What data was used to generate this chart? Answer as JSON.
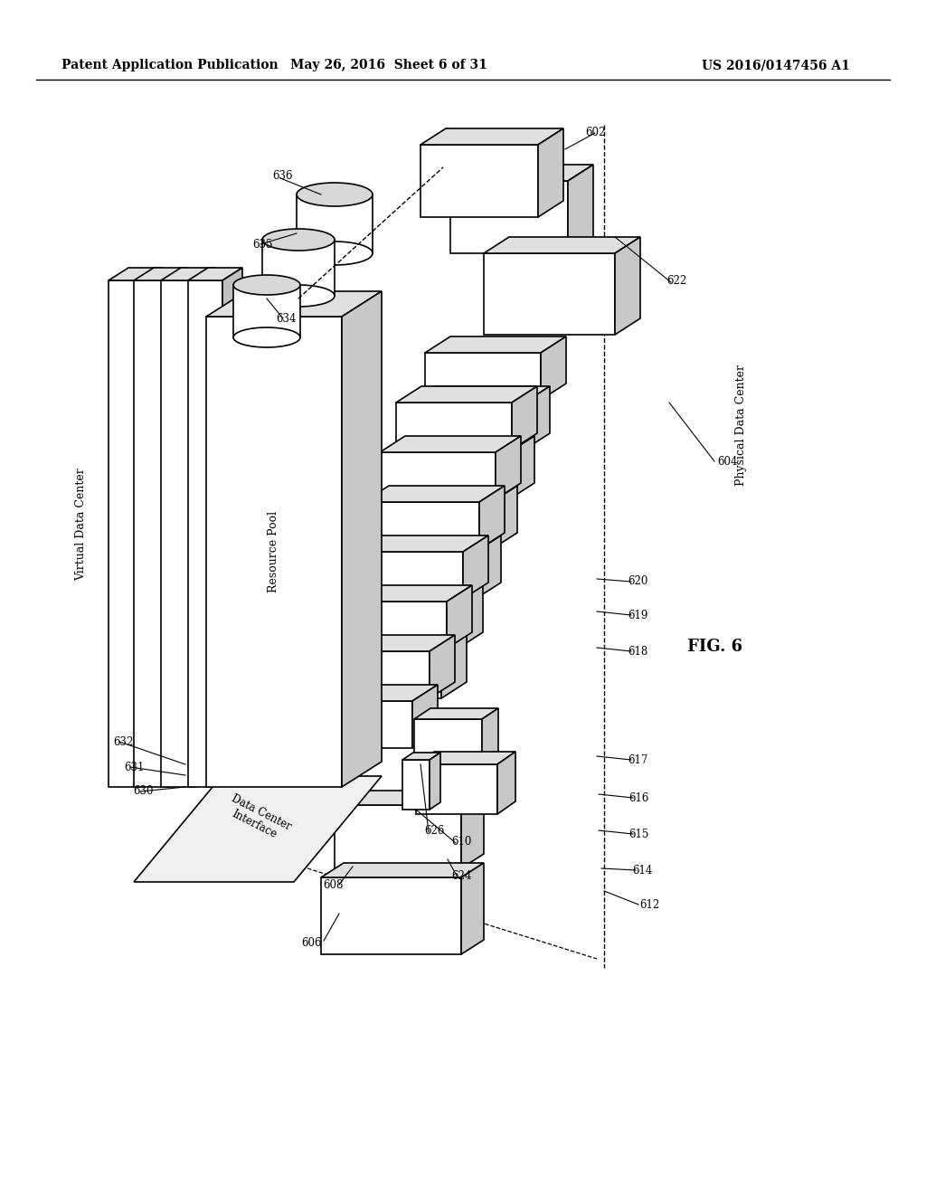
{
  "title_left": "Patent Application Publication",
  "title_mid": "May 26, 2016  Sheet 6 of 31",
  "title_right": "US 2016/0147456 A1",
  "fig_label": "FIG. 6",
  "bg_color": "#ffffff",
  "line_color": "#000000",
  "top_color": "#d8d8d8",
  "side_color": "#b8b8b8",
  "face_color": "#ffffff",
  "cyl_top_color": "#cccccc"
}
